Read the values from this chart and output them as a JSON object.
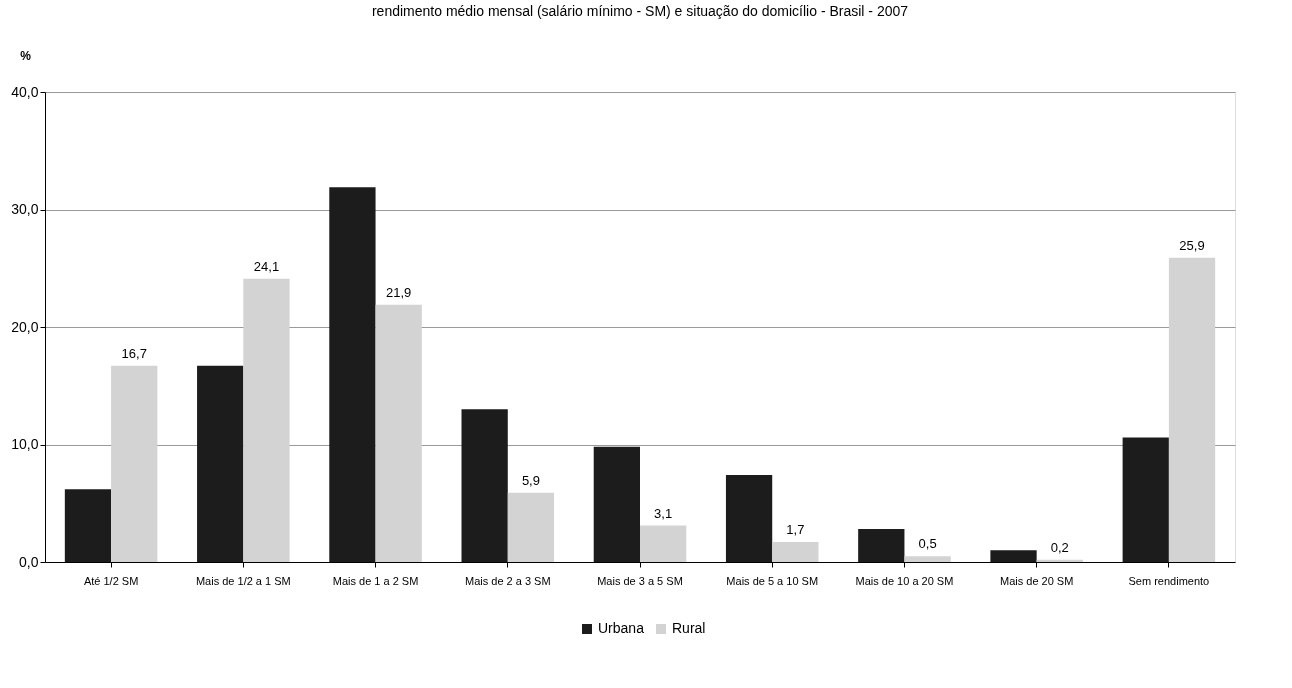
{
  "chart_data": {
    "type": "bar",
    "title": "rendimento médio mensal (salário mínimo - SM) e situação do domicílio - Brasil - 2007",
    "ylabel": "%",
    "categories": [
      "Até 1/2 SM",
      "Mais de 1/2 a 1 SM",
      "Mais de 1 a 2 SM",
      "Mais de 2 a 3 SM",
      "Mais de 3 a 5 SM",
      "Mais de 5 a 10 SM",
      "Mais de 10 a 20 SM",
      "Mais de 20 SM",
      "Sem rendimento"
    ],
    "series": [
      {
        "name": "Urbana",
        "color": "#1c1c1c",
        "values": [
          6.2,
          16.7,
          31.9,
          13.0,
          9.8,
          7.4,
          2.8,
          1.0,
          10.6
        ]
      },
      {
        "name": "Rural",
        "color": "#d3d3d3",
        "values": [
          16.7,
          24.1,
          21.9,
          5.9,
          3.1,
          1.7,
          0.5,
          0.2,
          25.9
        ],
        "value_labels": [
          "16,7",
          "24,1",
          "21,9",
          "5,9",
          "3,1",
          "1,7",
          "0,5",
          "0,2",
          "25,9"
        ]
      }
    ],
    "ylim": [
      0,
      40
    ],
    "yticks": [
      {
        "value": 0,
        "label": "0,0"
      },
      {
        "value": 10,
        "label": "10,0"
      },
      {
        "value": 20,
        "label": "20,0"
      },
      {
        "value": 30,
        "label": "30,0"
      },
      {
        "value": 40,
        "label": "40,0"
      }
    ],
    "grid": "y",
    "legend": "bottom"
  }
}
